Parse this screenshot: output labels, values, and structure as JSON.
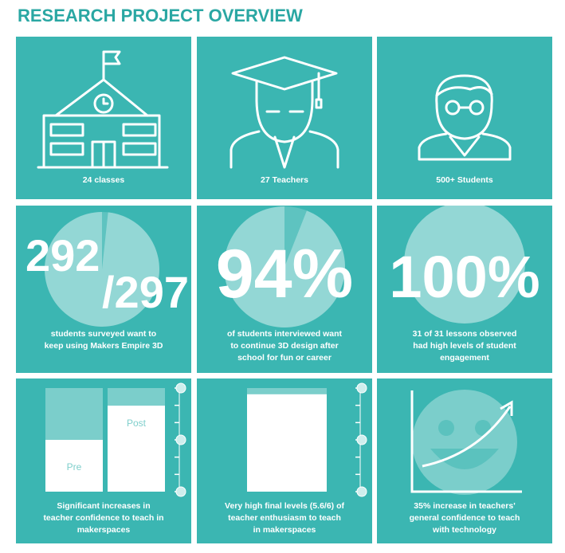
{
  "header": {
    "title": "RESEARCH PROJECT OVERVIEW"
  },
  "tiles": [
    {
      "caption": [
        "24 classes"
      ]
    },
    {
      "caption": [
        "27 Teachers"
      ]
    },
    {
      "caption": [
        "500+ Students"
      ]
    },
    {
      "big": [
        "292",
        "/297"
      ],
      "pie": 98.3,
      "caption": [
        "students surveyed want to",
        "keep using Makers Empire 3D"
      ]
    },
    {
      "big": [
        "94%"
      ],
      "pie": 94,
      "caption": [
        "of students interviewed want",
        "to continue 3D design after",
        "school for fun or career"
      ]
    },
    {
      "big": [
        "100%"
      ],
      "pie": 100,
      "caption": [
        "31 of 31 lessons observed",
        "had high levels of student",
        "engagement"
      ]
    },
    {
      "bars": [
        {
          "label": "Pre",
          "value": 50
        },
        {
          "label": "Post",
          "value": 83
        }
      ],
      "ylim": [
        0,
        100
      ],
      "caption": [
        "Significant increases in",
        "teacher confidence to teach in",
        "makerspaces"
      ]
    },
    {
      "bars": [
        {
          "value": 94
        }
      ],
      "ylim": [
        0,
        100
      ],
      "caption": [
        "Very high final levels (5.6/6) of",
        "teacher enthusiasm to teach",
        "in makerspaces"
      ]
    },
    {
      "caption": [
        "35% increase in teachers'",
        "general confidence to teach",
        "with technology"
      ]
    }
  ]
}
